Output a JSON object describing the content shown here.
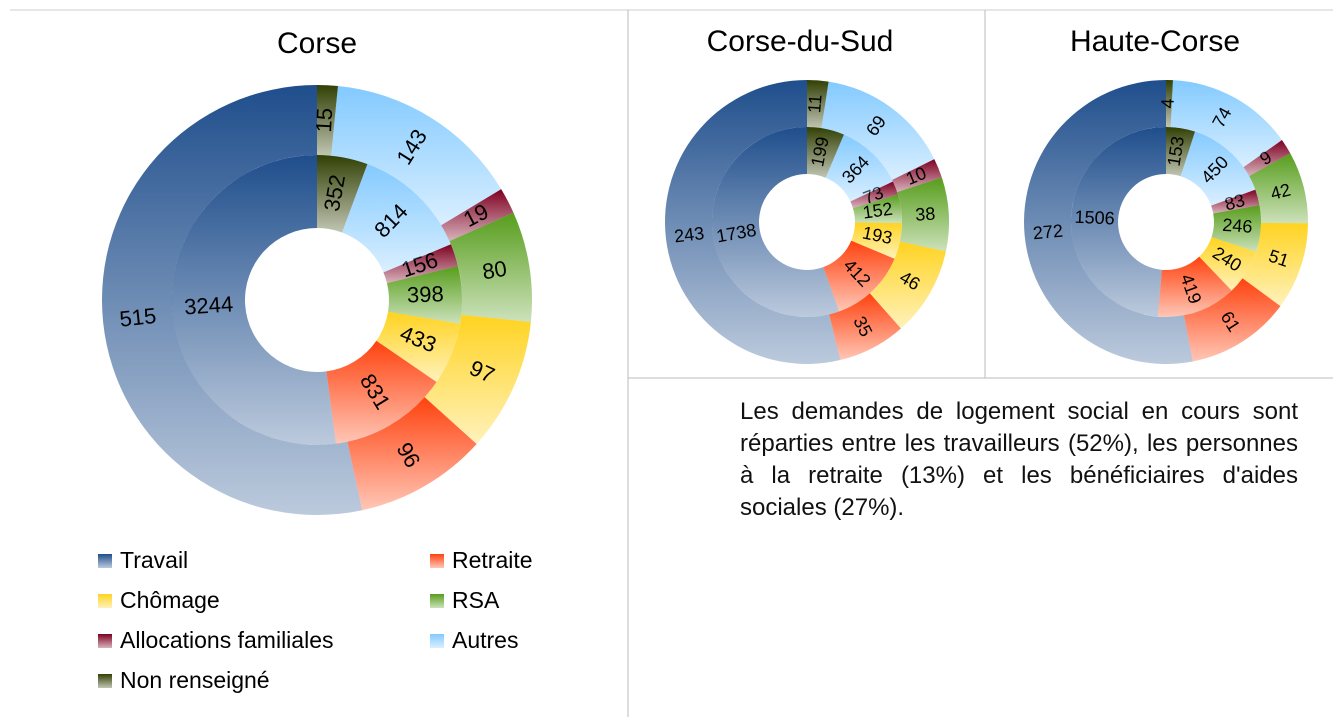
{
  "chart_data": [
    {
      "type": "donut",
      "title": "Corse",
      "categories": [
        "Travail",
        "Retraite",
        "Chômage",
        "RSA",
        "Allocations familiales",
        "Autres",
        "Non renseigné"
      ],
      "colors": [
        "#1f4e8c",
        "#ff420e",
        "#ffd320",
        "#579d1c",
        "#7e0021",
        "#83caff",
        "#314004"
      ],
      "rings": [
        {
          "values": [
            3244,
            831,
            433,
            398,
            156,
            814,
            352
          ]
        },
        {
          "values": [
            515,
            96,
            97,
            80,
            19,
            143,
            15
          ]
        }
      ]
    },
    {
      "type": "donut",
      "title": "Corse-du-Sud",
      "rings": [
        {
          "values": [
            1738,
            412,
            193,
            152,
            73,
            364,
            199
          ]
        },
        {
          "values": [
            243,
            35,
            46,
            38,
            10,
            69,
            11
          ]
        }
      ]
    },
    {
      "type": "donut",
      "title": "Haute-Corse",
      "rings": [
        {
          "values": [
            1506,
            419,
            240,
            246,
            83,
            450,
            153
          ]
        },
        {
          "values": [
            272,
            61,
            51,
            42,
            9,
            74,
            4
          ]
        }
      ]
    }
  ],
  "text": {
    "paragraph": "Les demandes de logement social en cours sont réparties entre les travailleurs (52%), les personnes à la retraite (13%) et les bénéficiaires d'aides sociales (27%)."
  }
}
